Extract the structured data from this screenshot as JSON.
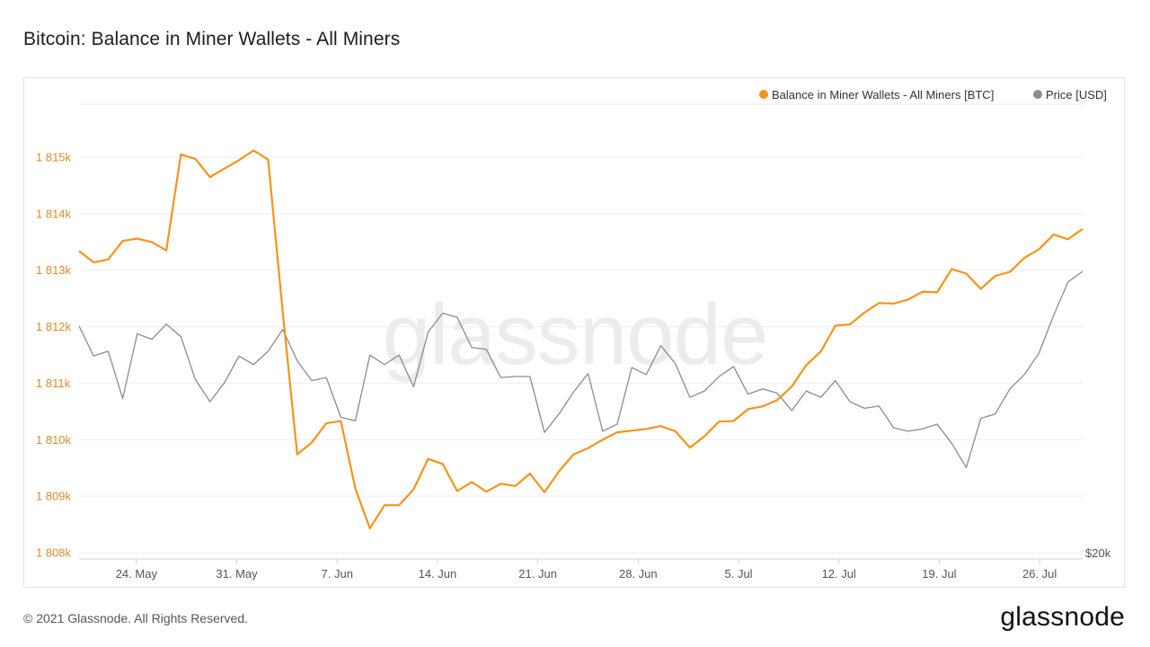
{
  "header": {
    "title": "Bitcoin: Balance in Miner Wallets - All Miners"
  },
  "footer": {
    "copyright": "© 2021 Glassnode. All Rights Reserved.",
    "logo": "glassnode"
  },
  "watermark": "glassnode",
  "colors": {
    "balance": "#F7931A",
    "price": "#8C8C8C",
    "axis_text_left": "#D88C2C",
    "axis_text": "#555555",
    "grid": "#EDEDED"
  },
  "chart_data": {
    "type": "line",
    "title": "Bitcoin: Balance in Miner Wallets - All Miners",
    "x_tick_labels": [
      "24. May",
      "31. May",
      "7. Jun",
      "14. Jun",
      "21. Jun",
      "28. Jun",
      "5. Jul",
      "12. Jul",
      "19. Jul",
      "26. Jul"
    ],
    "x_start": "2021-05-20",
    "x_end": "2021-07-29",
    "y_left": {
      "ticks": [
        1808000,
        1809000,
        1810000,
        1811000,
        1812000,
        1813000,
        1814000,
        1815000
      ],
      "tick_labels": [
        "1 808k",
        "1 809k",
        "1 810k",
        "1 811k",
        "1 812k",
        "1 813k",
        "1 814k",
        "1 815k"
      ],
      "range": [
        1808000,
        1816000
      ]
    },
    "y_right": {
      "tick_labels": [
        "$20k"
      ],
      "ticks": [
        20000
      ],
      "range": [
        20000,
        60000
      ],
      "scale": "log"
    },
    "legend": {
      "placement": "top-right",
      "entries": [
        "Balance in Miner Wallets - All Miners [BTC]",
        "Price [USD]"
      ]
    },
    "series": [
      {
        "name": "Balance in Miner Wallets - All Miners [BTC]",
        "axis": "left",
        "values": [
          1813340,
          1813140,
          1813190,
          1813520,
          1813560,
          1813500,
          1813350,
          1815050,
          1814970,
          1814650,
          1814800,
          1814950,
          1815120,
          1814960,
          1812270,
          1809740,
          1809950,
          1810290,
          1810330,
          1809130,
          1808430,
          1808840,
          1808840,
          1809120,
          1809660,
          1809570,
          1809090,
          1809250,
          1809080,
          1809220,
          1809180,
          1809400,
          1809070,
          1809440,
          1809740,
          1809850,
          1810000,
          1810130,
          1810160,
          1810190,
          1810240,
          1810150,
          1809860,
          1810060,
          1810320,
          1810330,
          1810540,
          1810590,
          1810700,
          1810940,
          1811320,
          1811560,
          1812020,
          1812040,
          1812250,
          1812420,
          1812410,
          1812480,
          1812620,
          1812610,
          1813020,
          1812940,
          1812670,
          1812900,
          1812970,
          1813220,
          1813370,
          1813630,
          1813550,
          1813730
        ]
      },
      {
        "name": "Price [USD]",
        "axis": "right",
        "values": [
          39000,
          35700,
          36200,
          31500,
          38100,
          37500,
          39200,
          37800,
          33300,
          31200,
          33000,
          35700,
          34800,
          36200,
          38600,
          35200,
          33200,
          33500,
          29800,
          29500,
          35800,
          34800,
          35800,
          32600,
          38300,
          40500,
          40000,
          36600,
          36400,
          33500,
          33600,
          33600,
          28500,
          30100,
          32100,
          33900,
          28600,
          29200,
          34500,
          33800,
          36800,
          34900,
          31600,
          32200,
          33600,
          34600,
          31900,
          32400,
          32000,
          30400,
          32200,
          31600,
          33200,
          31200,
          30600,
          30800,
          28900,
          28600,
          28800,
          29200,
          27600,
          25700,
          29700,
          30100,
          32400,
          33800,
          36000,
          40200,
          44400,
          45800
        ]
      }
    ]
  }
}
